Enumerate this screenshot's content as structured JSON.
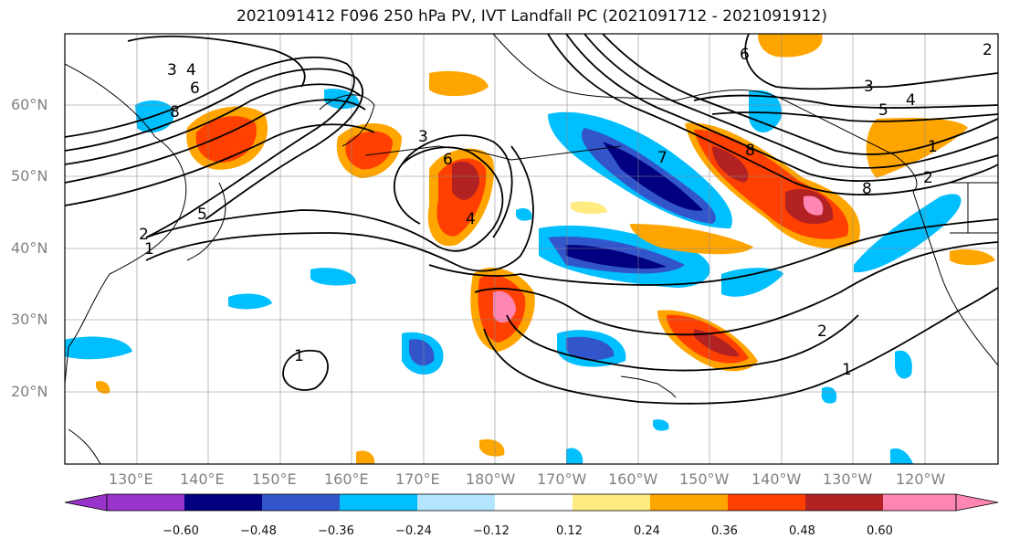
{
  "title": "2021091412 F096 250 hPa PV, IVT Landfall PC (2021091712 - 2021091912)",
  "lat_labels": [
    "60°N",
    "50°N",
    "40°N",
    "30°N",
    "20°N"
  ],
  "lon_labels": [
    "130°E",
    "140°E",
    "150°E",
    "160°E",
    "170°E",
    "180°W",
    "170°W",
    "160°W",
    "150°W",
    "140°W",
    "130°W",
    "120°W"
  ],
  "colorbar": {
    "ticks": [
      "−0.60",
      "−0.48",
      "−0.36",
      "−0.24",
      "−0.12",
      "0.12",
      "0.24",
      "0.36",
      "0.48",
      "0.60"
    ],
    "colors": [
      "#9933cc",
      "#000080",
      "#3355cc",
      "#00bfff",
      "#b3e5ff",
      "#ffffff",
      "#ffeb80",
      "#ffa500",
      "#ff4000",
      "#b22222",
      "#ff85b3"
    ]
  },
  "contour_labels": [
    "3",
    "4",
    "6",
    "8",
    "5",
    "2",
    "1",
    "3",
    "4",
    "6",
    "8",
    "1",
    "2",
    "6",
    "3",
    "4",
    "5",
    "8",
    "2",
    "1",
    "2",
    "1",
    "7"
  ]
}
